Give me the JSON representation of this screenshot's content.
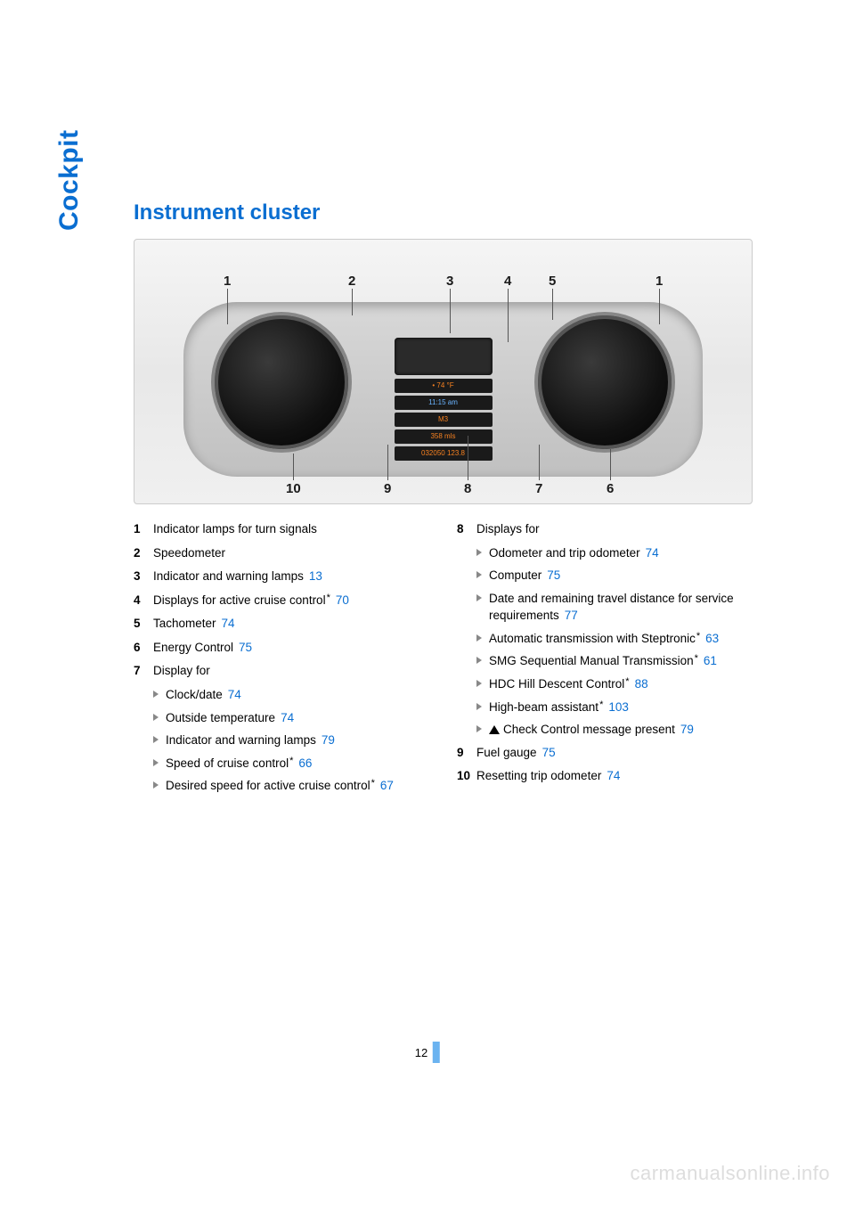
{
  "side_tab": "Cockpit",
  "heading": "Instrument cluster",
  "figure": {
    "callouts_top": [
      "1",
      "2",
      "3",
      "4",
      "5",
      "1"
    ],
    "callouts_bottom": [
      "10",
      "9",
      "8",
      "7",
      "6"
    ],
    "center_lines": [
      "• 74 °F",
      "11:15 am",
      "M3",
      "358 mls",
      "032050  123.8"
    ]
  },
  "left_items": [
    {
      "n": "1",
      "text": "Indicator lamps for turn signals"
    },
    {
      "n": "2",
      "text": "Speedometer"
    },
    {
      "n": "3",
      "text": "Indicator and warning lamps",
      "page": "13"
    },
    {
      "n": "4",
      "text": "Displays for active cruise control",
      "star": true,
      "page": "70"
    },
    {
      "n": "5",
      "text": "Tachometer",
      "page": "74"
    },
    {
      "n": "6",
      "text": "Energy Control",
      "page": "75"
    },
    {
      "n": "7",
      "text": "Display for",
      "subs": [
        {
          "text": "Clock/date",
          "page": "74"
        },
        {
          "text": "Outside temperature",
          "page": "74"
        },
        {
          "text": "Indicator and warning lamps",
          "page": "79"
        },
        {
          "text": "Speed of cruise control",
          "star": true,
          "page": "66"
        },
        {
          "text": "Desired speed for active cruise control",
          "star": true,
          "page": "67"
        }
      ]
    }
  ],
  "right_items": [
    {
      "n": "8",
      "text": "Displays for",
      "subs": [
        {
          "text": "Odometer and trip odometer",
          "page": "74"
        },
        {
          "text": "Computer",
          "page": "75"
        },
        {
          "text": "Date and remaining travel distance for service requirements",
          "page": "77"
        },
        {
          "text": "Automatic transmission with Steptronic",
          "star": true,
          "page": "63"
        },
        {
          "text": "SMG Sequential Manual Transmission",
          "star": true,
          "page": "61"
        },
        {
          "text": "HDC Hill Descent Control",
          "star": true,
          "page": "88"
        },
        {
          "text": "High-beam assistant",
          "star": true,
          "page": "103"
        },
        {
          "warn": true,
          "text": "Check Control message present",
          "page": "79"
        }
      ]
    },
    {
      "n": "9",
      "text": "Fuel gauge",
      "page": "75"
    },
    {
      "n": "10",
      "text": "Resetting trip odometer",
      "page": "74"
    }
  ],
  "page_number": "12",
  "watermark": "carmanualsonline.info"
}
